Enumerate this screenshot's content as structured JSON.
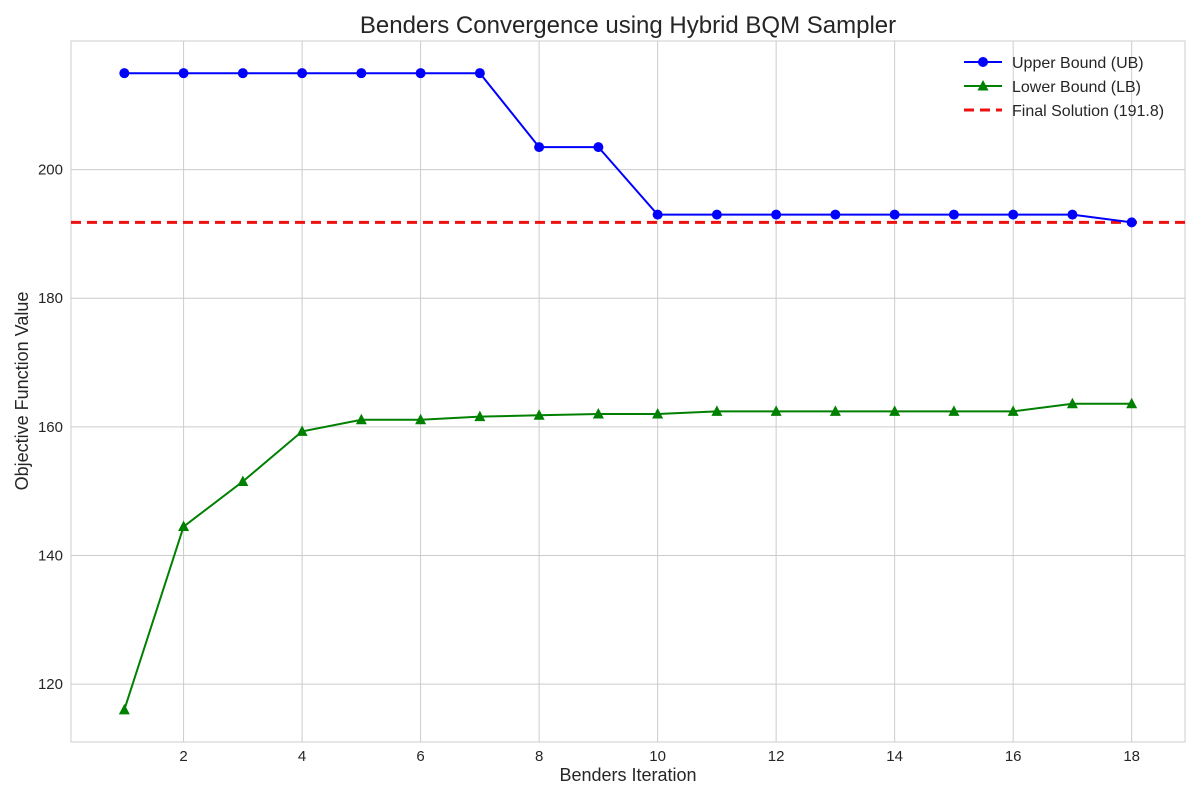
{
  "chart_data": {
    "type": "line",
    "title": "Benders Convergence using Hybrid BQM Sampler",
    "xlabel": "Benders Iteration",
    "ylabel": "Objective Function Value",
    "xlim": [
      0.1,
      18.9
    ],
    "ylim": [
      111,
      220
    ],
    "xticks": [
      2,
      4,
      6,
      8,
      10,
      12,
      14,
      16,
      18
    ],
    "yticks": [
      120,
      140,
      160,
      180,
      200
    ],
    "grid": true,
    "legend_position": "top-right",
    "x": [
      1,
      2,
      3,
      4,
      5,
      6,
      7,
      8,
      9,
      10,
      11,
      12,
      13,
      14,
      15,
      16,
      17,
      18
    ],
    "series": [
      {
        "name": "Upper Bound (UB)",
        "color": "#0000ff",
        "marker": "circle",
        "values": [
          215,
          215,
          215,
          215,
          215,
          215,
          215,
          203.5,
          203.5,
          193,
          193,
          193,
          193,
          193,
          193,
          193,
          193,
          191.8
        ]
      },
      {
        "name": "Lower Bound (LB)",
        "color": "#008000",
        "marker": "triangle",
        "values": [
          116,
          144.5,
          151.5,
          159.3,
          161.1,
          161.1,
          161.6,
          161.8,
          162,
          162,
          162.4,
          162.4,
          162.4,
          162.4,
          162.4,
          162.4,
          163.6,
          163.6
        ]
      }
    ],
    "reference_line": {
      "name": "Final Solution (191.8)",
      "value": 191.8,
      "color": "#ee1111",
      "style": "dashed"
    }
  }
}
